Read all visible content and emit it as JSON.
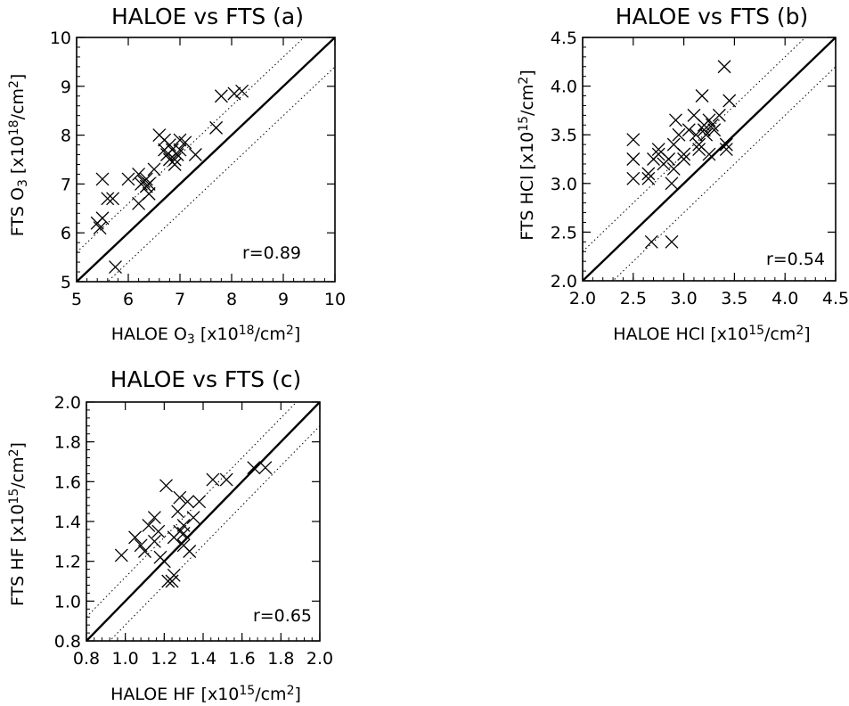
{
  "chart_data": [
    {
      "type": "scatter",
      "title": "HALOE vs FTS (a)",
      "xlabel": {
        "pre": "HALOE O",
        "sub": "3",
        "unit_pre": " [x10",
        "exp": "18",
        "unit_mid": "/cm",
        "unit_exp": "2",
        "unit_post": "]"
      },
      "ylabel": {
        "pre": "FTS O",
        "sub": "3",
        "unit_pre": " [x10",
        "exp": "18",
        "unit_mid": "/cm",
        "unit_exp": "2",
        "unit_post": "]"
      },
      "xlim": [
        5,
        10
      ],
      "ylim": [
        5,
        10
      ],
      "xticks": [
        "5",
        "6",
        "7",
        "8",
        "9",
        "10"
      ],
      "yticks": [
        "5",
        "6",
        "7",
        "8",
        "9",
        "10"
      ],
      "annotation": "r=0.89",
      "one_to_one_line": true,
      "dotted_offset": 0.6,
      "points": [
        [
          5.4,
          6.2
        ],
        [
          5.45,
          6.1
        ],
        [
          5.5,
          6.3
        ],
        [
          5.5,
          7.1
        ],
        [
          5.6,
          6.7
        ],
        [
          5.7,
          6.7
        ],
        [
          5.75,
          5.3
        ],
        [
          6.0,
          7.1
        ],
        [
          6.2,
          7.2
        ],
        [
          6.2,
          6.6
        ],
        [
          6.25,
          7.0
        ],
        [
          6.3,
          7.05
        ],
        [
          6.35,
          6.95
        ],
        [
          6.35,
          7.1
        ],
        [
          6.4,
          6.8
        ],
        [
          6.4,
          7.0
        ],
        [
          6.5,
          7.3
        ],
        [
          6.6,
          8.0
        ],
        [
          6.7,
          7.9
        ],
        [
          6.7,
          7.7
        ],
        [
          6.75,
          7.6
        ],
        [
          6.8,
          7.5
        ],
        [
          6.8,
          7.8
        ],
        [
          6.85,
          7.7
        ],
        [
          6.9,
          7.5
        ],
        [
          6.9,
          7.4
        ],
        [
          6.95,
          7.6
        ],
        [
          7.0,
          7.9
        ],
        [
          7.0,
          7.7
        ],
        [
          7.1,
          7.85
        ],
        [
          7.3,
          7.6
        ],
        [
          7.7,
          8.15
        ],
        [
          7.8,
          8.8
        ],
        [
          8.05,
          8.85
        ],
        [
          8.2,
          8.9
        ]
      ]
    },
    {
      "type": "scatter",
      "title": "HALOE vs FTS (b)",
      "xlabel": {
        "pre": "HALOE HCl",
        "sub": "",
        "unit_pre": " [x10",
        "exp": "15",
        "unit_mid": "/cm",
        "unit_exp": "2",
        "unit_post": "]"
      },
      "ylabel": {
        "pre": "FTS HCl",
        "sub": "",
        "unit_pre": " [x10",
        "exp": "15",
        "unit_mid": "/cm",
        "unit_exp": "2",
        "unit_post": "]"
      },
      "xlim": [
        2.0,
        4.5
      ],
      "ylim": [
        2.0,
        4.5
      ],
      "xticks": [
        "2.0",
        "2.5",
        "3.0",
        "3.5",
        "4.0",
        "4.5"
      ],
      "yticks": [
        "2.0",
        "2.5",
        "3.0",
        "3.5",
        "4.0",
        "4.5"
      ],
      "annotation": "r=0.54",
      "one_to_one_line": true,
      "dotted_offset": 0.3,
      "points": [
        [
          2.5,
          3.45
        ],
        [
          2.5,
          3.25
        ],
        [
          2.5,
          3.05
        ],
        [
          2.65,
          3.1
        ],
        [
          2.65,
          3.05
        ],
        [
          2.68,
          2.4
        ],
        [
          2.7,
          3.25
        ],
        [
          2.75,
          3.35
        ],
        [
          2.75,
          3.3
        ],
        [
          2.8,
          3.2
        ],
        [
          2.85,
          3.25
        ],
        [
          2.88,
          2.4
        ],
        [
          2.88,
          3.0
        ],
        [
          2.9,
          3.15
        ],
        [
          2.9,
          3.4
        ],
        [
          2.92,
          3.65
        ],
        [
          2.95,
          3.5
        ],
        [
          3.0,
          3.3
        ],
        [
          3.0,
          3.25
        ],
        [
          3.05,
          3.55
        ],
        [
          3.1,
          3.7
        ],
        [
          3.12,
          3.5
        ],
        [
          3.15,
          3.4
        ],
        [
          3.15,
          3.35
        ],
        [
          3.18,
          3.9
        ],
        [
          3.2,
          3.6
        ],
        [
          3.2,
          3.55
        ],
        [
          3.22,
          3.5
        ],
        [
          3.25,
          3.65
        ],
        [
          3.25,
          3.3
        ],
        [
          3.28,
          3.6
        ],
        [
          3.3,
          3.55
        ],
        [
          3.35,
          3.7
        ],
        [
          3.4,
          4.2
        ],
        [
          3.42,
          3.4
        ],
        [
          3.42,
          3.35
        ],
        [
          3.45,
          3.85
        ]
      ]
    },
    {
      "type": "scatter",
      "title": "HALOE vs FTS (c)",
      "xlabel": {
        "pre": "HALOE HF",
        "sub": "",
        "unit_pre": " [x10",
        "exp": "15",
        "unit_mid": "/cm",
        "unit_exp": "2",
        "unit_post": "]"
      },
      "ylabel": {
        "pre": "FTS HF",
        "sub": "",
        "unit_pre": " [x10",
        "exp": "15",
        "unit_mid": "/cm",
        "unit_exp": "2",
        "unit_post": "]"
      },
      "xlim": [
        0.8,
        2.0
      ],
      "ylim": [
        0.8,
        2.0
      ],
      "xticks": [
        "0.8",
        "1.0",
        "1.2",
        "1.4",
        "1.6",
        "1.8",
        "2.0"
      ],
      "yticks": [
        "0.8",
        "1.0",
        "1.2",
        "1.4",
        "1.6",
        "1.8",
        "2.0"
      ],
      "annotation": "r=0.65",
      "one_to_one_line": true,
      "dotted_offset": 0.12,
      "points": [
        [
          0.98,
          1.23
        ],
        [
          1.05,
          1.32
        ],
        [
          1.08,
          1.28
        ],
        [
          1.1,
          1.25
        ],
        [
          1.12,
          1.38
        ],
        [
          1.15,
          1.42
        ],
        [
          1.15,
          1.3
        ],
        [
          1.17,
          1.35
        ],
        [
          1.18,
          1.22
        ],
        [
          1.2,
          1.2
        ],
        [
          1.21,
          1.58
        ],
        [
          1.22,
          1.1
        ],
        [
          1.24,
          1.1
        ],
        [
          1.25,
          1.32
        ],
        [
          1.25,
          1.13
        ],
        [
          1.27,
          1.45
        ],
        [
          1.28,
          1.35
        ],
        [
          1.28,
          1.52
        ],
        [
          1.3,
          1.38
        ],
        [
          1.3,
          1.34
        ],
        [
          1.3,
          1.28
        ],
        [
          1.32,
          1.5
        ],
        [
          1.33,
          1.25
        ],
        [
          1.35,
          1.42
        ],
        [
          1.38,
          1.5
        ],
        [
          1.45,
          1.61
        ],
        [
          1.52,
          1.61
        ],
        [
          1.66,
          1.67
        ],
        [
          1.72,
          1.67
        ]
      ]
    }
  ]
}
